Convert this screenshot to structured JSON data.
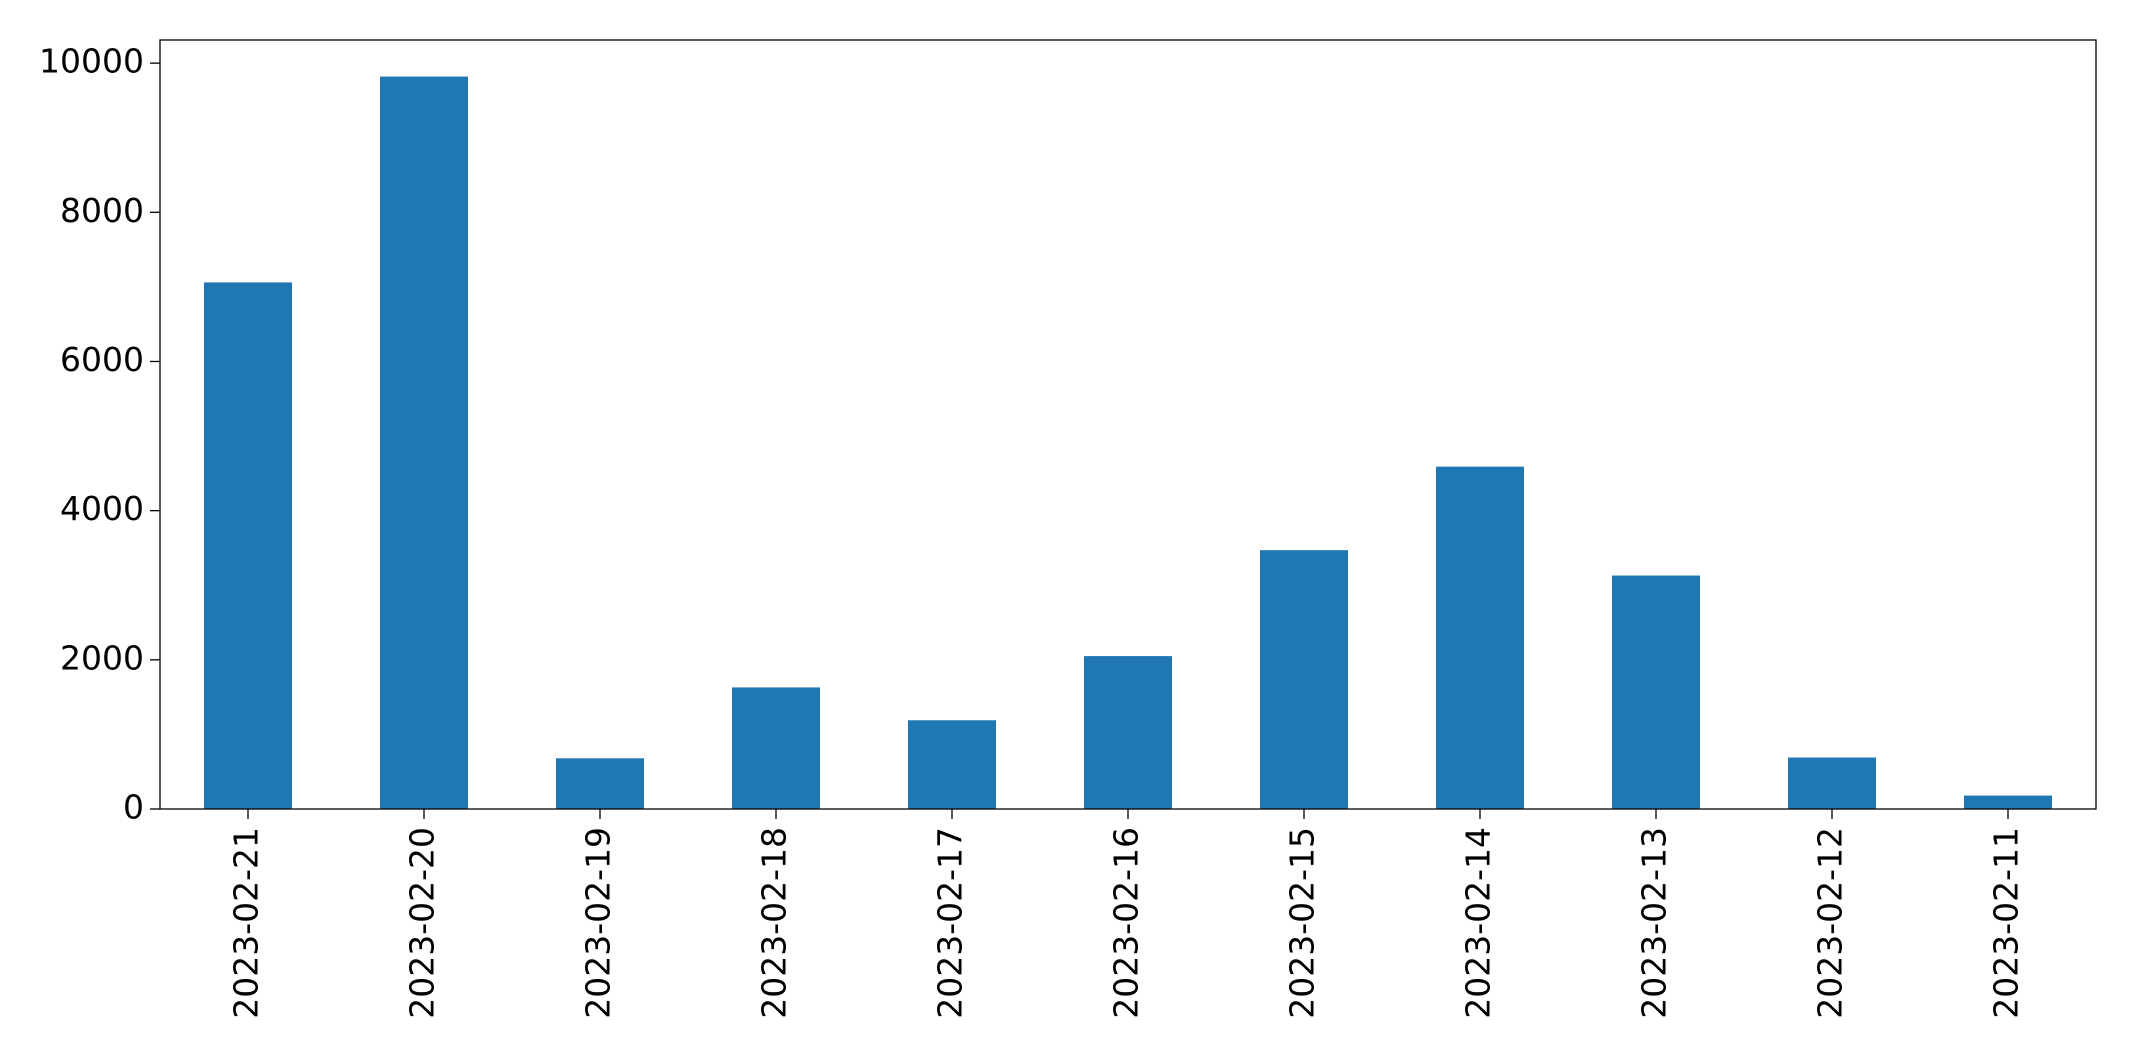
{
  "chart_data": {
    "type": "bar",
    "categories": [
      "2023-02-21",
      "2023-02-20",
      "2023-02-19",
      "2023-02-18",
      "2023-02-17",
      "2023-02-16",
      "2023-02-15",
      "2023-02-14",
      "2023-02-13",
      "2023-02-12",
      "2023-02-11"
    ],
    "values": [
      7060,
      9820,
      680,
      1630,
      1190,
      2050,
      3470,
      4590,
      3130,
      690,
      180
    ],
    "color": "#1f77b4",
    "ylim": [
      0,
      10310
    ],
    "yticks": [
      0,
      2000,
      4000,
      6000,
      8000,
      10000
    ],
    "grid": false
  }
}
